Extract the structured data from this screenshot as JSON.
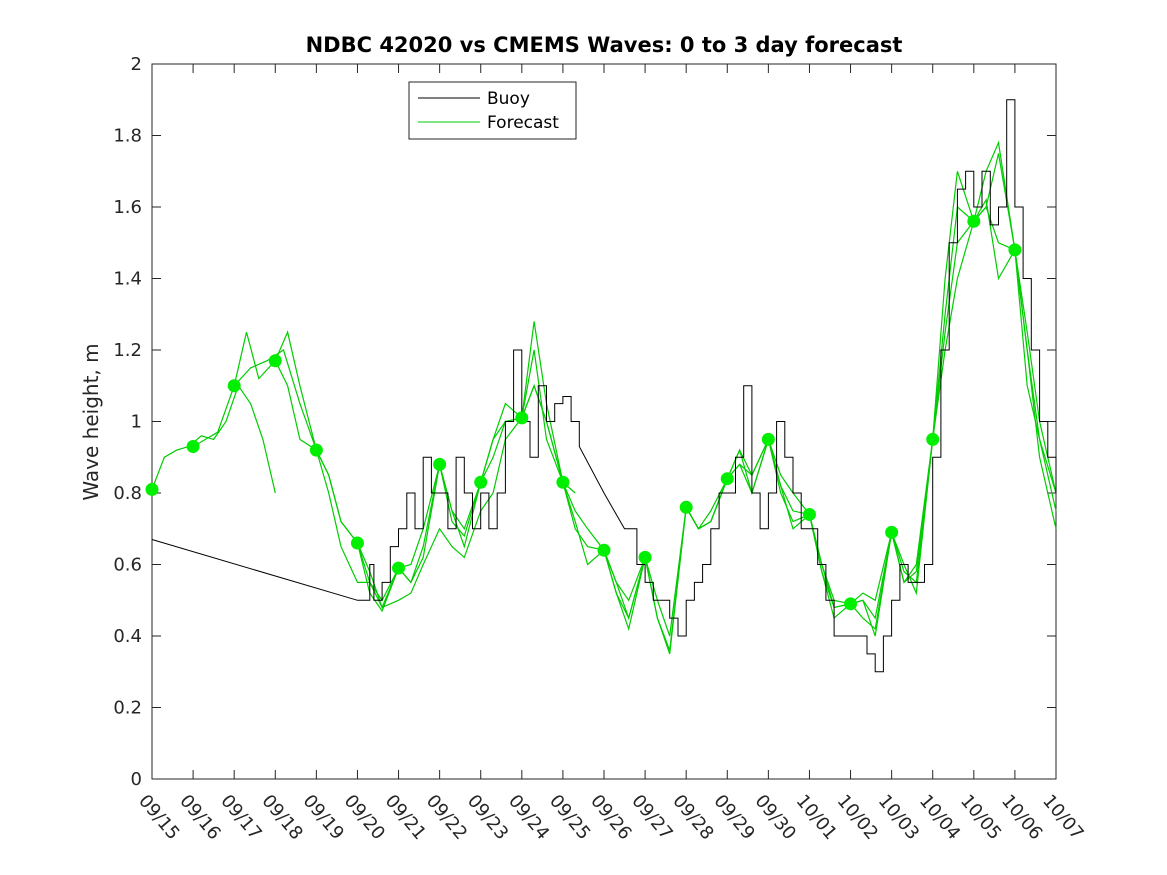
{
  "chart_data": {
    "type": "line",
    "title": "NDBC 42020 vs CMEMS Waves: 0 to 3 day forecast",
    "xlabel": "",
    "ylabel": "Wave height, m",
    "xlim": [
      "09/15",
      "10/07"
    ],
    "ylim": [
      0,
      2
    ],
    "x_ticks": [
      "09/15",
      "09/16",
      "09/17",
      "09/18",
      "09/19",
      "09/20",
      "09/21",
      "09/22",
      "09/23",
      "09/24",
      "09/25",
      "09/26",
      "09/27",
      "09/28",
      "09/29",
      "09/30",
      "10/01",
      "10/02",
      "10/03",
      "10/04",
      "10/05",
      "10/06",
      "10/07"
    ],
    "y_ticks": [
      "0",
      "0.2",
      "0.4",
      "0.6",
      "0.8",
      "1",
      "1.2",
      "1.4",
      "1.6",
      "1.8",
      "2"
    ],
    "grid": false,
    "legend": {
      "position": "top-left-center",
      "entries": [
        {
          "name": "Buoy",
          "color": "#000000"
        },
        {
          "name": "Forecast",
          "color": "#00cc00"
        }
      ]
    },
    "colors": {
      "buoy": "#000000",
      "forecast": "#00cc00",
      "forecast_dot": "#00ee00"
    },
    "buoy_series": {
      "name": "Buoy",
      "x_day": [
        0,
        5,
        5.1,
        5.3,
        5.4,
        5.6,
        5.8,
        6,
        6.2,
        6.4,
        6.6,
        6.8,
        7,
        7.2,
        7.4,
        7.6,
        7.8,
        8,
        8.2,
        8.4,
        8.6,
        8.8,
        9,
        9.2,
        9.4,
        9.6,
        9.8,
        10,
        10.2,
        10.4,
        11,
        11.5,
        11.8,
        12,
        12.2,
        12.4,
        12.6,
        12.8,
        13,
        13.2,
        13.4,
        13.6,
        13.8,
        14,
        14.2,
        14.4,
        14.6,
        14.8,
        15,
        15.2,
        15.4,
        15.6,
        15.8,
        16,
        16.2,
        16.4,
        16.6,
        16.8,
        17,
        17.2,
        17.4,
        17.6,
        17.8,
        18,
        18.2,
        18.4,
        18.6,
        18.8,
        19,
        19.2,
        19.4,
        19.6,
        19.8,
        20,
        20.2,
        20.4,
        20.6,
        20.8,
        21,
        21.2,
        21.4,
        21.6,
        21.8,
        22
      ],
      "y": [
        0.67,
        0.5,
        0.5,
        0.6,
        0.5,
        0.55,
        0.65,
        0.7,
        0.8,
        0.7,
        0.9,
        0.8,
        0.8,
        0.7,
        0.9,
        0.8,
        0.7,
        0.8,
        0.7,
        0.8,
        1.0,
        1.2,
        1.0,
        0.9,
        1.1,
        1.0,
        1.05,
        1.07,
        1.0,
        0.93,
        0.8,
        0.7,
        0.6,
        0.55,
        0.5,
        0.5,
        0.45,
        0.4,
        0.5,
        0.55,
        0.6,
        0.7,
        0.8,
        0.8,
        0.9,
        1.1,
        0.8,
        0.7,
        0.8,
        1.0,
        0.9,
        0.8,
        0.7,
        0.7,
        0.6,
        0.5,
        0.4,
        0.4,
        0.4,
        0.4,
        0.35,
        0.3,
        0.4,
        0.5,
        0.6,
        0.55,
        0.55,
        0.6,
        0.9,
        1.2,
        1.5,
        1.65,
        1.7,
        1.6,
        1.7,
        1.55,
        1.6,
        1.9,
        1.6,
        1.4,
        1.2,
        1.0,
        0.9,
        0.8
      ]
    },
    "forecast_runs": [
      {
        "name": "Forecast",
        "x_day": [
          0,
          0.3,
          0.6,
          0.9,
          1.2,
          1.5,
          1.8,
          2.1,
          2.4,
          2.7,
          3.0
        ],
        "y": [
          0.81,
          0.9,
          0.92,
          0.93,
          0.96,
          0.95,
          1.0,
          1.1,
          1.05,
          0.95,
          0.8
        ]
      },
      {
        "name": "Forecast",
        "x_day": [
          1,
          1.3,
          1.6,
          2,
          2.3,
          2.6,
          3,
          3.3,
          3.6,
          4
        ],
        "y": [
          0.93,
          0.95,
          0.97,
          1.1,
          1.25,
          1.12,
          1.17,
          1.25,
          1.1,
          0.92
        ]
      },
      {
        "name": "Forecast",
        "x_day": [
          2,
          2.4,
          2.8,
          3.2,
          3.6,
          4,
          4.3,
          4.6,
          5,
          5.3,
          5.6,
          6,
          6.3,
          6.6,
          7
        ],
        "y": [
          1.1,
          1.15,
          1.17,
          1.2,
          1.05,
          0.92,
          0.8,
          0.65,
          0.55,
          0.55,
          0.5,
          0.59,
          0.55,
          0.65,
          0.88
        ]
      },
      {
        "name": "Forecast",
        "x_day": [
          3,
          3.3,
          3.6,
          4,
          4.3,
          4.6,
          5,
          5.3,
          5.6,
          6,
          6.3,
          6.6,
          7,
          7.3,
          7.6,
          8,
          8.3,
          8.6,
          9
        ],
        "y": [
          1.17,
          1.1,
          0.95,
          0.92,
          0.85,
          0.72,
          0.66,
          0.55,
          0.48,
          0.59,
          0.6,
          0.7,
          0.88,
          0.75,
          0.7,
          0.83,
          0.95,
          1.05,
          1.01
        ]
      },
      {
        "name": "Forecast",
        "x_day": [
          4,
          4.3,
          4.6,
          5,
          5.3,
          5.6,
          6,
          6.3,
          6.6,
          7,
          7.3,
          7.6,
          8,
          8.3,
          8.6,
          9,
          9.3,
          9.6,
          10,
          10.3
        ],
        "y": [
          0.92,
          0.85,
          0.72,
          0.66,
          0.58,
          0.48,
          0.5,
          0.52,
          0.6,
          0.7,
          0.65,
          0.62,
          0.75,
          0.8,
          0.95,
          1.01,
          1.1,
          1.0,
          0.83,
          0.8
        ]
      },
      {
        "name": "Forecast",
        "x_day": [
          5,
          5.3,
          5.6,
          6,
          6.3,
          6.6,
          7,
          7.3,
          7.6,
          8,
          8.3,
          8.6,
          9,
          9.3,
          9.6,
          10,
          10.3,
          10.6,
          11,
          11.3,
          11.6,
          12
        ],
        "y": [
          0.66,
          0.52,
          0.47,
          0.59,
          0.55,
          0.62,
          0.88,
          0.75,
          0.65,
          0.83,
          0.95,
          1.0,
          1.01,
          1.28,
          1.05,
          0.83,
          0.7,
          0.65,
          0.64,
          0.55,
          0.5,
          0.62
        ]
      },
      {
        "name": "Forecast",
        "x_day": [
          7,
          7.3,
          7.6,
          8,
          8.3,
          8.6,
          9,
          9.3,
          9.6,
          10,
          10.3,
          10.6,
          11,
          11.3,
          11.6,
          12,
          12.3,
          12.6,
          13,
          13.3,
          13.6,
          14,
          14.3,
          14.6,
          15
        ],
        "y": [
          0.88,
          0.72,
          0.68,
          0.83,
          0.9,
          1.0,
          1.01,
          1.1,
          1.0,
          0.83,
          0.75,
          0.7,
          0.64,
          0.52,
          0.45,
          0.62,
          0.5,
          0.4,
          0.76,
          0.7,
          0.75,
          0.84,
          0.88,
          0.8,
          0.95
        ]
      },
      {
        "name": "Forecast",
        "x_day": [
          9,
          9.3,
          9.6,
          10,
          10.3,
          10.6,
          11,
          11.3,
          11.6,
          12,
          12.3,
          12.6,
          13,
          13.3,
          13.6,
          14,
          14.3,
          14.6,
          15,
          15.3,
          15.6,
          16,
          16.3,
          16.6,
          17
        ],
        "y": [
          1.01,
          1.2,
          0.95,
          0.83,
          0.72,
          0.6,
          0.64,
          0.52,
          0.42,
          0.62,
          0.45,
          0.36,
          0.76,
          0.7,
          0.72,
          0.84,
          0.92,
          0.85,
          0.95,
          0.85,
          0.8,
          0.74,
          0.6,
          0.5,
          0.49
        ]
      },
      {
        "name": "Forecast",
        "x_day": [
          11,
          11.3,
          11.6,
          12,
          12.3,
          12.6,
          13,
          13.3,
          13.6,
          14,
          14.3,
          14.6,
          15,
          15.3,
          15.6,
          16,
          16.3,
          16.6,
          17,
          17.3,
          17.6,
          18,
          18.3,
          18.6,
          19
        ],
        "y": [
          0.64,
          0.55,
          0.45,
          0.62,
          0.45,
          0.35,
          0.76,
          0.7,
          0.72,
          0.84,
          0.88,
          0.85,
          0.95,
          0.8,
          0.72,
          0.74,
          0.58,
          0.48,
          0.49,
          0.5,
          0.45,
          0.69,
          0.6,
          0.52,
          0.95
        ]
      },
      {
        "name": "Forecast",
        "x_day": [
          13,
          13.3,
          13.6,
          14,
          14.3,
          14.6,
          15,
          15.3,
          15.6,
          16,
          16.3,
          16.6,
          17,
          17.3,
          17.6,
          18,
          18.3,
          18.6,
          19,
          19.3,
          19.6,
          20,
          20.3,
          20.6,
          21,
          21.3,
          21.6,
          22
        ],
        "y": [
          0.76,
          0.7,
          0.72,
          0.84,
          0.92,
          0.8,
          0.95,
          0.82,
          0.7,
          0.74,
          0.58,
          0.45,
          0.49,
          0.52,
          0.5,
          0.69,
          0.58,
          0.55,
          0.95,
          1.4,
          1.7,
          1.56,
          1.6,
          1.75,
          1.48,
          1.2,
          0.95,
          0.75
        ]
      },
      {
        "name": "Forecast",
        "x_day": [
          15,
          15.3,
          15.6,
          16,
          16.3,
          16.6,
          17,
          17.3,
          17.6,
          18,
          18.3,
          18.6,
          19,
          19.3,
          19.6,
          20,
          20.3,
          20.6,
          21,
          21.3,
          21.6,
          22
        ],
        "y": [
          0.95,
          0.82,
          0.75,
          0.74,
          0.6,
          0.48,
          0.49,
          0.5,
          0.4,
          0.69,
          0.55,
          0.58,
          0.95,
          1.3,
          1.6,
          1.56,
          1.7,
          1.78,
          1.48,
          1.25,
          1.0,
          0.8
        ]
      },
      {
        "name": "Forecast",
        "x_day": [
          17,
          17.3,
          17.6,
          18,
          18.3,
          18.6,
          19,
          19.3,
          19.6,
          20,
          20.3,
          20.6,
          21,
          21.3,
          21.6,
          22
        ],
        "y": [
          0.49,
          0.45,
          0.42,
          0.69,
          0.55,
          0.6,
          0.95,
          1.2,
          1.4,
          1.56,
          1.6,
          1.5,
          1.48,
          1.2,
          0.9,
          0.7
        ]
      },
      {
        "name": "Forecast",
        "x_day": [
          19,
          19.3,
          19.6,
          20,
          20.3,
          20.6,
          21,
          21.3,
          21.6,
          22
        ],
        "y": [
          0.95,
          1.25,
          1.5,
          1.56,
          1.62,
          1.4,
          1.48,
          1.1,
          0.95,
          0.8
        ]
      }
    ],
    "forecast_dots": {
      "x_day": [
        0,
        1,
        2,
        3,
        4,
        5,
        6,
        7,
        8,
        9,
        10,
        11,
        12,
        13,
        14,
        15,
        16,
        17,
        18,
        19,
        20,
        21
      ],
      "y": [
        0.81,
        0.93,
        1.1,
        1.17,
        0.92,
        0.66,
        0.59,
        0.88,
        0.83,
        1.01,
        0.83,
        0.64,
        0.62,
        0.76,
        0.84,
        0.95,
        0.74,
        0.49,
        0.69,
        0.95,
        1.56,
        1.48
      ]
    }
  }
}
